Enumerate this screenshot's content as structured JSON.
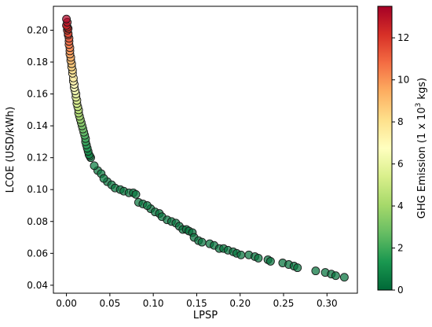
{
  "chart_data": {
    "type": "scatter",
    "title": "",
    "xlabel": "LPSP",
    "ylabel": "LCOE (USD/kWh)",
    "xlim": [
      -0.015,
      0.335
    ],
    "ylim": [
      0.035,
      0.215
    ],
    "xticks": [
      0.0,
      0.05,
      0.1,
      0.15,
      0.2,
      0.25,
      0.3
    ],
    "xtick_labels": [
      "0.00",
      "0.05",
      "0.10",
      "0.15",
      "0.20",
      "0.25",
      "0.30"
    ],
    "yticks": [
      0.04,
      0.06,
      0.08,
      0.1,
      0.12,
      0.14,
      0.16,
      0.18,
      0.2
    ],
    "ytick_labels": [
      "0.04",
      "0.06",
      "0.08",
      "0.10",
      "0.12",
      "0.14",
      "0.16",
      "0.18",
      "0.20"
    ],
    "grid": false,
    "colorbar": {
      "label_prefix": "GHG Emission (1 x 10",
      "label_exp": "3",
      "label_suffix": " kgs)",
      "min": 0,
      "max": 13.5,
      "ticks": [
        0,
        2,
        4,
        6,
        8,
        10,
        12
      ],
      "tick_labels": [
        "0",
        "2",
        "4",
        "6",
        "8",
        "10",
        "12"
      ],
      "colormap": "RdYlGn_r",
      "stops": [
        "#006837",
        "#1a9850",
        "#66bd63",
        "#a6d96a",
        "#d9ef8b",
        "#ffffbf",
        "#fee08b",
        "#fdae61",
        "#f46d43",
        "#d73027",
        "#a50026"
      ]
    },
    "series": [
      {
        "points": [
          [
            0.0,
            0.207,
            13.3
          ],
          [
            0.001,
            0.205,
            13.0
          ],
          [
            0.0,
            0.203,
            12.7
          ],
          [
            0.001,
            0.202,
            12.4
          ],
          [
            0.002,
            0.201,
            12.2
          ],
          [
            0.001,
            0.2,
            12.0
          ],
          [
            0.002,
            0.198,
            11.7
          ],
          [
            0.002,
            0.197,
            11.5
          ],
          [
            0.003,
            0.195,
            11.2
          ],
          [
            0.003,
            0.193,
            10.9
          ],
          [
            0.003,
            0.191,
            10.6
          ],
          [
            0.004,
            0.189,
            10.3
          ],
          [
            0.004,
            0.187,
            10.0
          ],
          [
            0.004,
            0.185,
            9.7
          ],
          [
            0.005,
            0.183,
            9.4
          ],
          [
            0.005,
            0.181,
            9.1
          ],
          [
            0.006,
            0.179,
            8.8
          ],
          [
            0.006,
            0.177,
            8.5
          ],
          [
            0.007,
            0.175,
            8.2
          ],
          [
            0.007,
            0.173,
            7.9
          ],
          [
            0.008,
            0.17,
            7.6
          ],
          [
            0.008,
            0.168,
            7.3
          ],
          [
            0.009,
            0.166,
            7.0
          ],
          [
            0.009,
            0.164,
            6.7
          ],
          [
            0.01,
            0.162,
            6.4
          ],
          [
            0.011,
            0.16,
            6.1
          ],
          [
            0.011,
            0.158,
            5.8
          ],
          [
            0.012,
            0.156,
            5.5
          ],
          [
            0.012,
            0.154,
            5.2
          ],
          [
            0.013,
            0.152,
            4.9
          ],
          [
            0.014,
            0.15,
            4.6
          ],
          [
            0.014,
            0.148,
            4.3
          ],
          [
            0.015,
            0.146,
            4.0
          ],
          [
            0.016,
            0.144,
            3.7
          ],
          [
            0.017,
            0.142,
            3.4
          ],
          [
            0.018,
            0.14,
            3.1
          ],
          [
            0.019,
            0.138,
            2.8
          ],
          [
            0.02,
            0.136,
            2.5
          ],
          [
            0.021,
            0.134,
            2.2
          ],
          [
            0.022,
            0.132,
            1.9
          ],
          [
            0.022,
            0.13,
            1.7
          ],
          [
            0.023,
            0.128,
            1.5
          ],
          [
            0.024,
            0.126,
            1.3
          ],
          [
            0.025,
            0.124,
            1.1
          ],
          [
            0.026,
            0.122,
            0.9
          ],
          [
            0.027,
            0.121,
            0.8
          ],
          [
            0.028,
            0.12,
            0.7
          ],
          [
            0.032,
            0.115,
            0.6
          ],
          [
            0.036,
            0.112,
            0.5
          ],
          [
            0.04,
            0.11,
            0.5
          ],
          [
            0.043,
            0.107,
            0.5
          ],
          [
            0.047,
            0.105,
            0.4
          ],
          [
            0.052,
            0.103,
            0.4
          ],
          [
            0.056,
            0.101,
            0.4
          ],
          [
            0.062,
            0.1,
            0.4
          ],
          [
            0.066,
            0.099,
            0.4
          ],
          [
            0.072,
            0.098,
            0.4
          ],
          [
            0.077,
            0.098,
            0.4
          ],
          [
            0.08,
            0.097,
            0.4
          ],
          [
            0.083,
            0.092,
            0.4
          ],
          [
            0.088,
            0.091,
            0.4
          ],
          [
            0.093,
            0.09,
            0.4
          ],
          [
            0.097,
            0.088,
            0.3
          ],
          [
            0.102,
            0.086,
            0.3
          ],
          [
            0.107,
            0.085,
            0.3
          ],
          [
            0.11,
            0.083,
            0.3
          ],
          [
            0.116,
            0.081,
            0.3
          ],
          [
            0.121,
            0.08,
            0.3
          ],
          [
            0.126,
            0.079,
            0.3
          ],
          [
            0.13,
            0.077,
            0.3
          ],
          [
            0.134,
            0.075,
            0.3
          ],
          [
            0.138,
            0.075,
            0.3
          ],
          [
            0.141,
            0.074,
            0.3
          ],
          [
            0.145,
            0.073,
            0.3
          ],
          [
            0.147,
            0.07,
            0.3
          ],
          [
            0.152,
            0.068,
            0.3
          ],
          [
            0.156,
            0.067,
            0.3
          ],
          [
            0.165,
            0.066,
            0.3
          ],
          [
            0.17,
            0.065,
            0.3
          ],
          [
            0.176,
            0.063,
            0.3
          ],
          [
            0.181,
            0.063,
            0.3
          ],
          [
            0.186,
            0.062,
            0.3
          ],
          [
            0.192,
            0.061,
            0.3
          ],
          [
            0.196,
            0.06,
            0.3
          ],
          [
            0.201,
            0.059,
            0.3
          ],
          [
            0.21,
            0.059,
            0.3
          ],
          [
            0.217,
            0.058,
            0.3
          ],
          [
            0.221,
            0.057,
            0.3
          ],
          [
            0.232,
            0.056,
            0.3
          ],
          [
            0.235,
            0.055,
            0.3
          ],
          [
            0.249,
            0.054,
            0.3
          ],
          [
            0.256,
            0.053,
            0.3
          ],
          [
            0.262,
            0.052,
            0.3
          ],
          [
            0.266,
            0.051,
            0.3
          ],
          [
            0.287,
            0.049,
            0.3
          ],
          [
            0.298,
            0.048,
            0.3
          ],
          [
            0.305,
            0.047,
            0.3
          ],
          [
            0.31,
            0.046,
            0.3
          ],
          [
            0.32,
            0.045,
            0.3
          ]
        ]
      }
    ]
  }
}
